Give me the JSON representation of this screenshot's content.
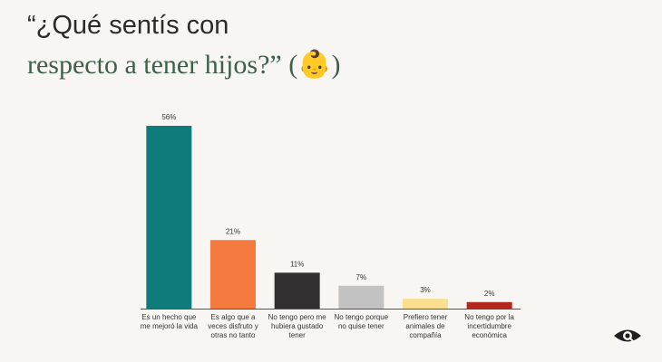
{
  "chart_data": {
    "type": "bar",
    "title": "“¿Qué sentís con",
    "subtitle": "respecto a tener hijos?” (👶)",
    "categories": [
      "Es un hecho que me mejoró la vida",
      "Es algo que a veces disfruto y otras no tanto",
      "No tengo pero me hubiera gustado tener",
      "No tengo porque no quise tener",
      "Prefiero tener animales de compañía",
      "No tengo por la incertidumbre económica"
    ],
    "values": [
      56,
      21,
      11,
      7,
      3,
      2
    ],
    "value_labels": [
      "56%",
      "21%",
      "11%",
      "7%",
      "3%",
      "2%"
    ],
    "colors": [
      "#0f7b7a",
      "#f47a40",
      "#343031",
      "#c2c2c2",
      "#fbdf8f",
      "#b3271f"
    ]
  }
}
